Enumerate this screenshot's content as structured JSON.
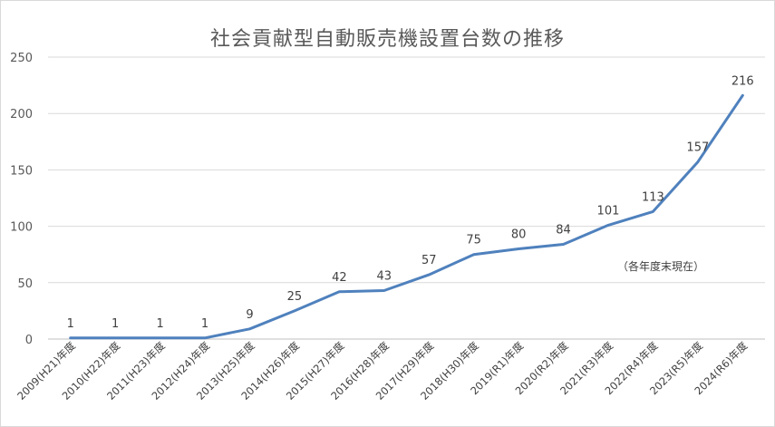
{
  "chart_data": {
    "type": "line",
    "title": "社会貢献型自動販売機設置台数の推移",
    "categories": [
      "2009(H21)年度",
      "2010(H22)年度",
      "2011(H23)年度",
      "2012(H24)年度",
      "2013(H25)年度",
      "2014(H26)年度",
      "2015(H27)年度",
      "2016(H28)年度",
      "2017(H29)年度",
      "2018(H30)年度",
      "2019(R1)年度",
      "2020(R2)年度",
      "2021(R3)年度",
      "2022(R4)年度",
      "2023(R5)年度",
      "2024(R6)年度"
    ],
    "series": [
      {
        "values": [
          1,
          1,
          1,
          1,
          9,
          25,
          42,
          43,
          57,
          75,
          80,
          84,
          101,
          113,
          157,
          216
        ],
        "color": "#4f81bd"
      }
    ],
    "ylim": [
      0,
      250
    ],
    "yticks": [
      0,
      50,
      100,
      150,
      200,
      250
    ],
    "grid": true,
    "legend": "none",
    "annotation": "（各年度末現在）"
  }
}
